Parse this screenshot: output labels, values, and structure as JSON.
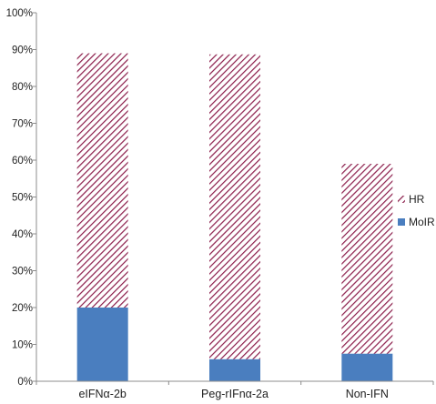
{
  "chart_data": {
    "type": "bar",
    "stacked": true,
    "categories": [
      "eIFNα-2b",
      "Peg-rIFnα-2a",
      "Non-IFN"
    ],
    "series": [
      {
        "name": "MoIR",
        "values": [
          20,
          6,
          7.5
        ],
        "color": "#4a7ebf",
        "pattern": "solid"
      },
      {
        "name": "HR",
        "values": [
          69,
          82.7,
          51.5
        ],
        "color": "#8b1c4a",
        "pattern": "diagonal-hatch"
      }
    ],
    "ylim": [
      0,
      100
    ],
    "y_ticks": [
      0,
      10,
      20,
      30,
      40,
      50,
      60,
      70,
      80,
      90,
      100
    ],
    "y_tick_format": "percent",
    "grid": false,
    "legend_position": "right",
    "legend_order": [
      "HR",
      "MoIR"
    ],
    "title": "",
    "xlabel": "",
    "ylabel": ""
  }
}
